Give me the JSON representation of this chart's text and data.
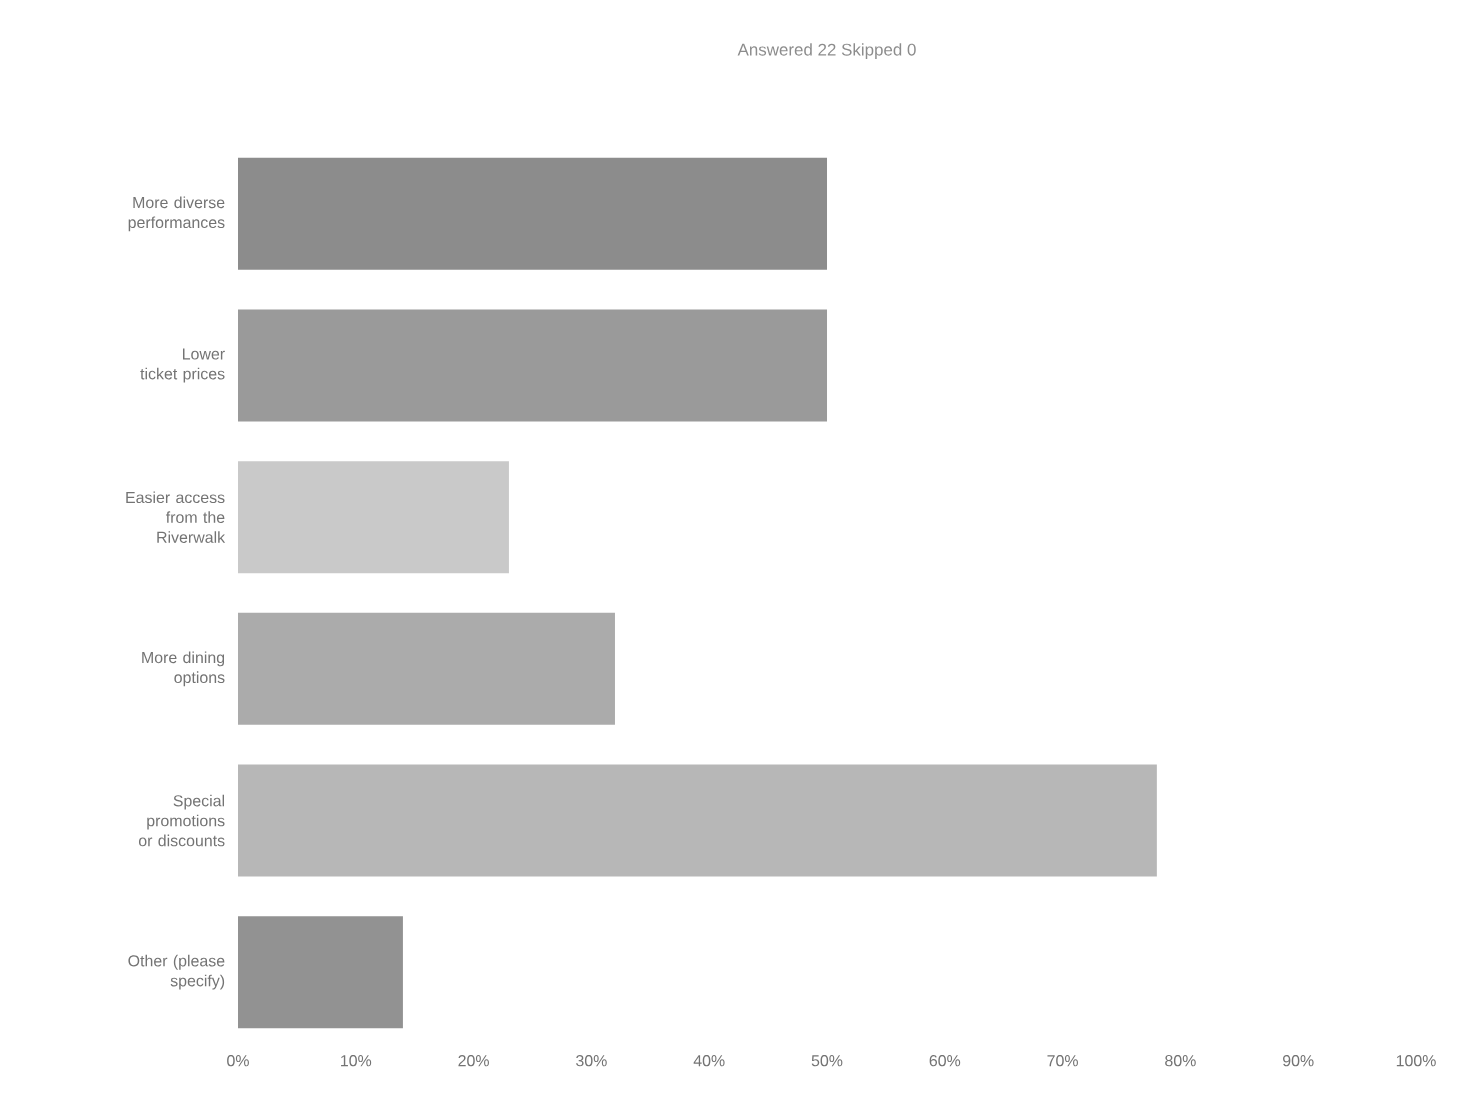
{
  "chart_data": {
    "type": "bar",
    "orientation": "horizontal",
    "title": "Answered 22    Skipped 0",
    "categories": [
      "More diverse performances",
      "Lower ticket prices",
      "Easier access from the Riverwalk",
      "More dining options",
      "Special promotions or discounts",
      "Other (please specify)"
    ],
    "values": [
      50,
      50,
      23,
      32,
      78,
      14
    ],
    "colors": [
      "#8c8c8c",
      "#9a9a9a",
      "#c9c9c9",
      "#ababab",
      "#b7b7b7",
      "#929292"
    ],
    "xlim": [
      0,
      100
    ],
    "xticks": [
      {
        "value": 0,
        "label": "0%"
      },
      {
        "value": 10,
        "label": "10%"
      },
      {
        "value": 20,
        "label": "20%"
      },
      {
        "value": 30,
        "label": "30%"
      },
      {
        "value": 40,
        "label": "40%"
      },
      {
        "value": 50,
        "label": "50%"
      },
      {
        "value": 60,
        "label": "60%"
      },
      {
        "value": 70,
        "label": "70%"
      },
      {
        "value": 80,
        "label": "80%"
      },
      {
        "value": 90,
        "label": "90%"
      },
      {
        "value": 100,
        "label": "100%"
      }
    ]
  }
}
